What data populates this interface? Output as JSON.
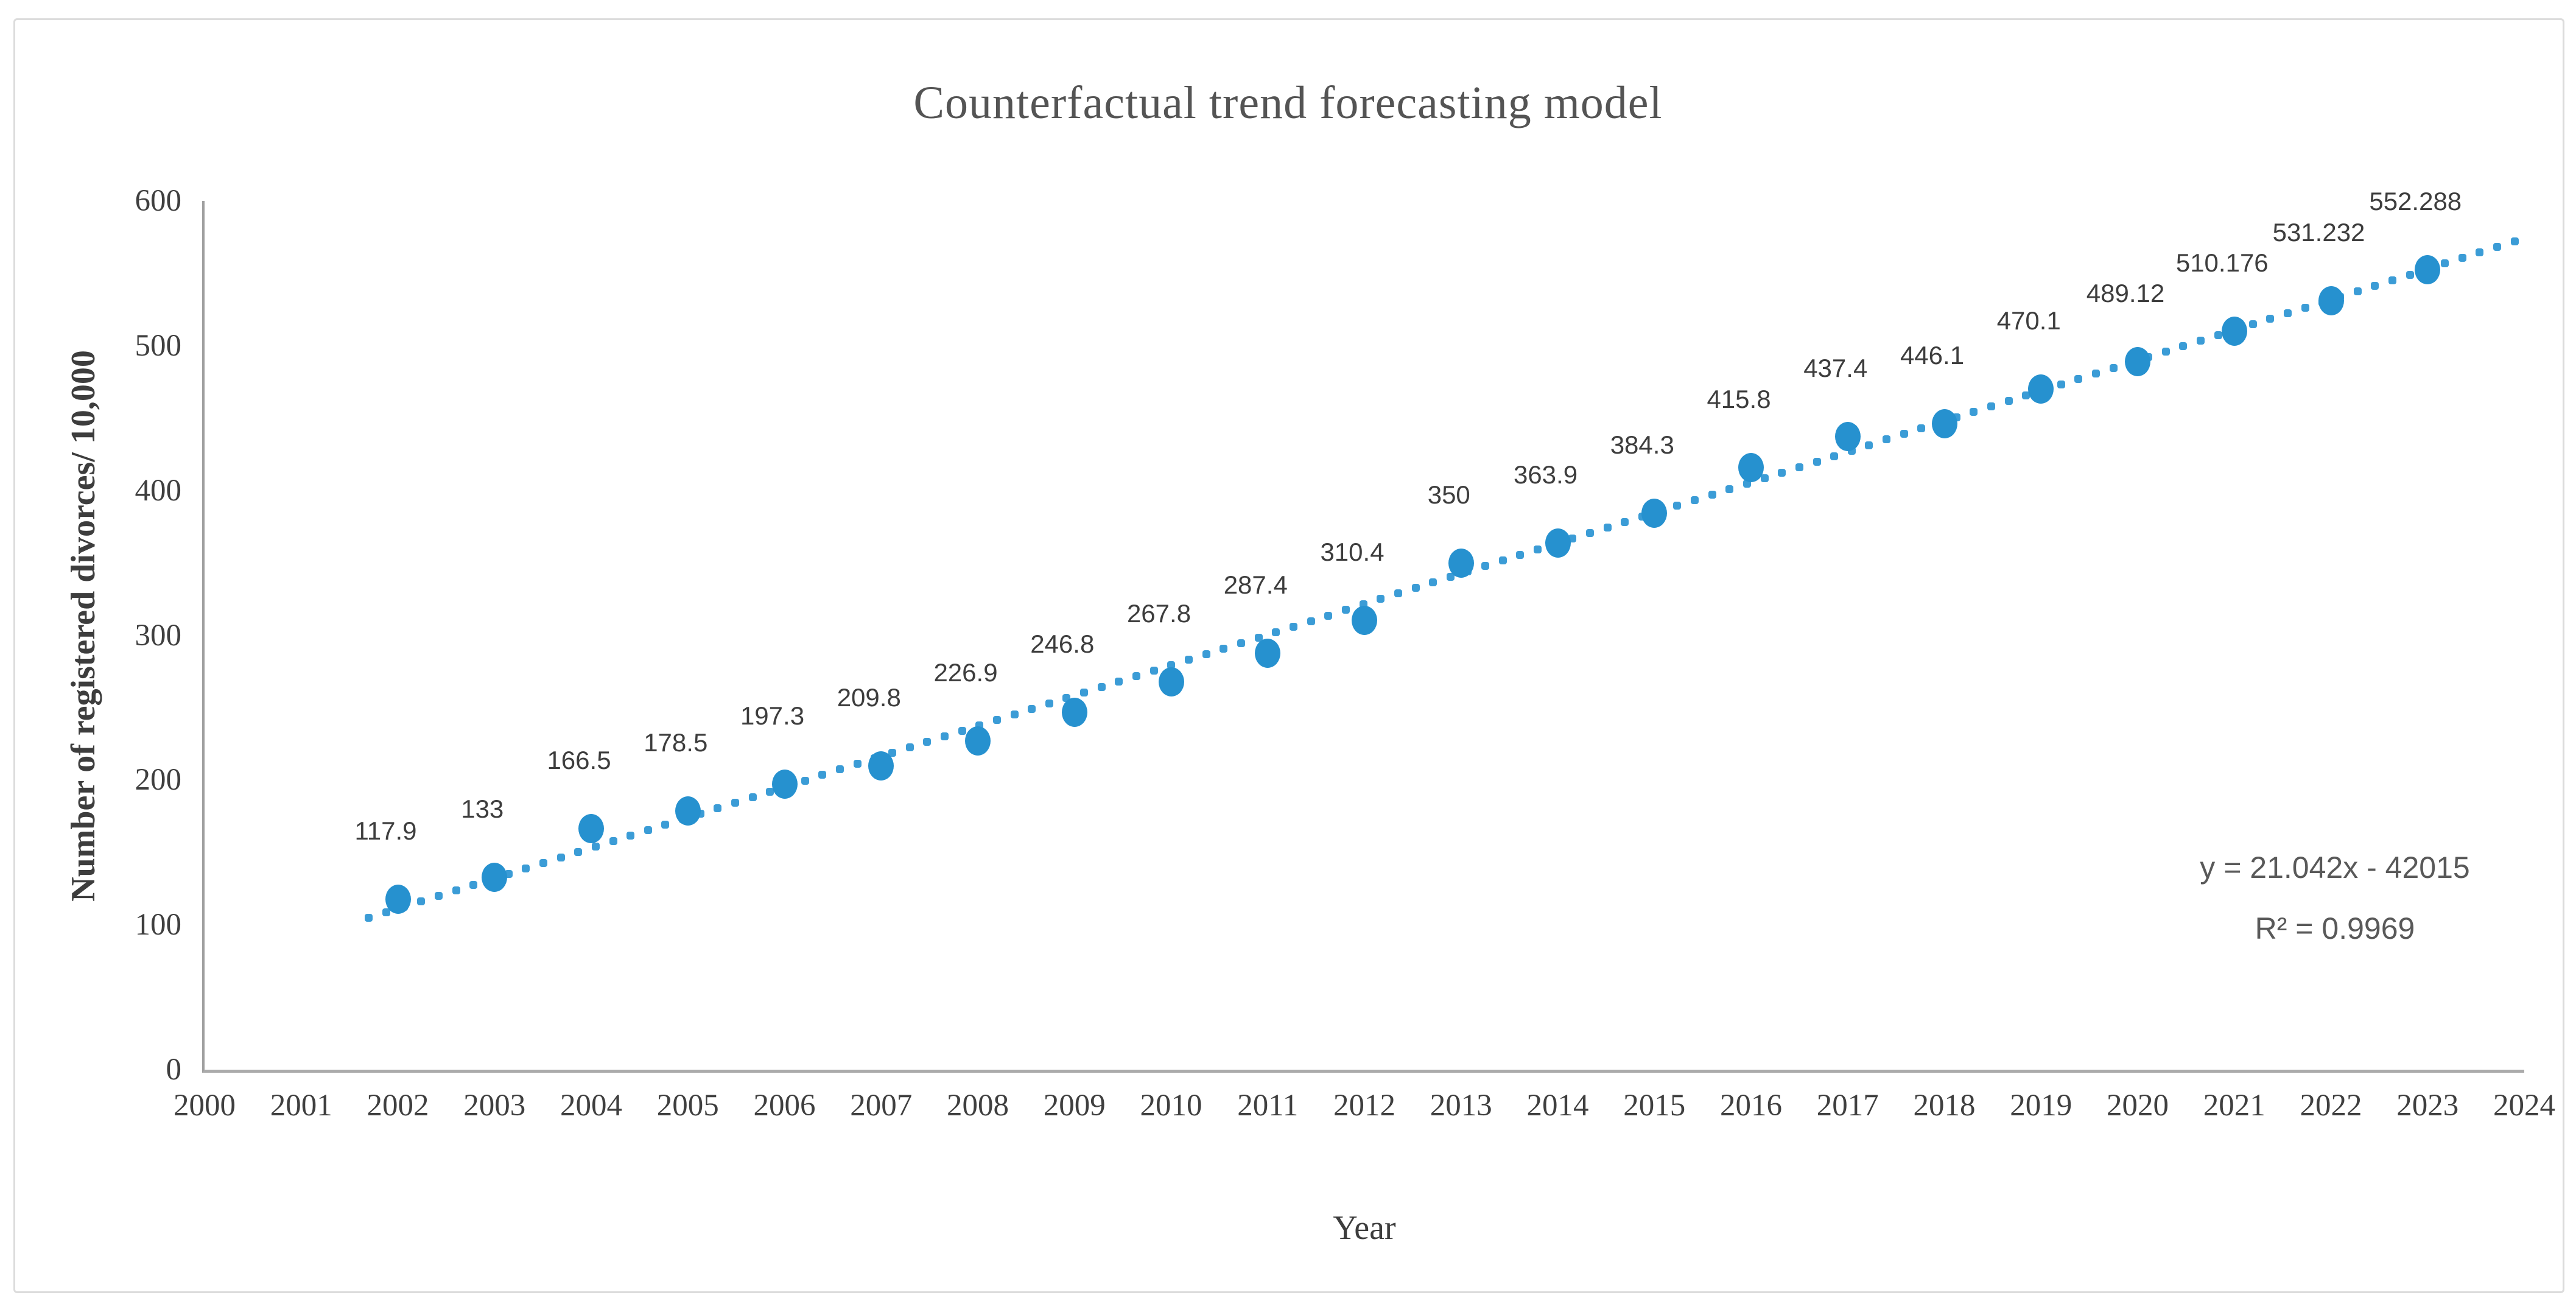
{
  "page": {
    "background": "#ffffff",
    "card_border_color": "#dcdcdc",
    "axis_line_color": "#a3a3a3",
    "tick_text_color": "#3f3f3f",
    "title_text_color": "#545454"
  },
  "chart_data": {
    "type": "scatter",
    "title": "Counterfactual trend forecasting model",
    "xlabel": "Year",
    "ylabel": "Number of registered divorces/ 10,000",
    "x": [
      2002,
      2003,
      2004,
      2005,
      2006,
      2007,
      2008,
      2009,
      2010,
      2011,
      2012,
      2013,
      2014,
      2015,
      2016,
      2017,
      2018,
      2019,
      2020,
      2021,
      2022,
      2023
    ],
    "y": [
      117.9,
      133,
      166.5,
      178.5,
      197.3,
      209.8,
      226.9,
      246.8,
      267.8,
      287.4,
      310.4,
      350,
      363.9,
      384.3,
      415.8,
      437.4,
      446.1,
      470.1,
      489.12,
      510.176,
      531.232,
      552.288
    ],
    "point_labels": [
      "117.9",
      "133",
      "166.5",
      "178.5",
      "197.3",
      "209.8",
      "226.9",
      "246.8",
      "267.8",
      "287.4",
      "310.4",
      "350",
      "363.9",
      "384.3",
      "415.8",
      "437.4",
      "446.1",
      "470.1",
      "489.12",
      "510.176",
      "531.232",
      "552.288"
    ],
    "xlim": [
      2000,
      2024
    ],
    "ylim": [
      0,
      600
    ],
    "xticks": [
      2000,
      2001,
      2002,
      2003,
      2004,
      2005,
      2006,
      2007,
      2008,
      2009,
      2010,
      2011,
      2012,
      2013,
      2014,
      2015,
      2016,
      2017,
      2018,
      2019,
      2020,
      2021,
      2022,
      2023,
      2024
    ],
    "yticks": [
      0,
      100,
      200,
      300,
      400,
      500,
      600
    ],
    "grid": false,
    "legend": false,
    "marker_color": "#2691cf",
    "trendline": {
      "style": "dotted",
      "color": "#2a94d2",
      "slope": 21.042,
      "intercept": -42015,
      "x_start": 2001.7,
      "x_end": 2023.9,
      "equation_line1": "y = 21.042x - 42015",
      "equation_line2": "R² = 0.9969"
    }
  }
}
